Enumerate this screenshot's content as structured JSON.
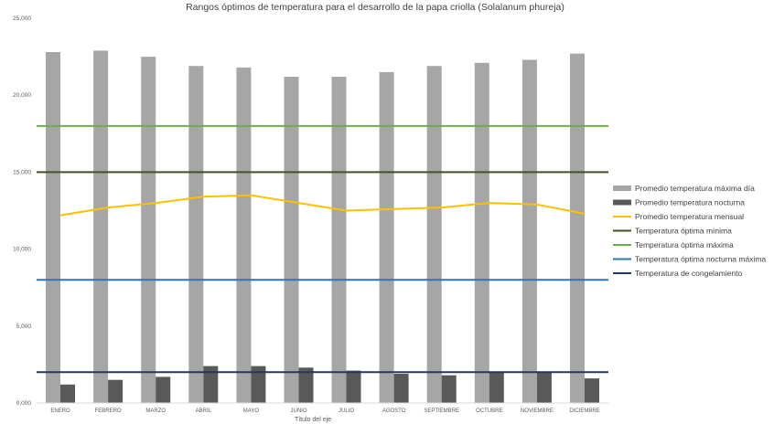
{
  "chart_data": {
    "type": "bar",
    "title": "Rangos óptimos de temperatura para el desarrollo de la papa criolla (Solalanum phureja)",
    "xlabel": "Título del eje",
    "ylabel": "",
    "ylim": [
      0,
      25
    ],
    "yticks": [
      "0,000",
      "5,000",
      "10,000",
      "15,000",
      "20,000",
      "25,000"
    ],
    "categories": [
      "ENERO",
      "FEBRERO",
      "MARZO",
      "ABRIL",
      "MAYO",
      "JUNIO",
      "JULIO",
      "AGOSTO",
      "SEPTIEMBRE",
      "OCTUBRE",
      "NOVIEMBRE",
      "DICIEMBRE"
    ],
    "series": [
      {
        "name": "Promedio temperatura máxima día",
        "type": "bar",
        "color": "#a6a6a6",
        "values": [
          22.8,
          22.9,
          22.5,
          21.9,
          21.8,
          21.2,
          21.2,
          21.5,
          21.9,
          22.1,
          22.3,
          22.7
        ]
      },
      {
        "name": "Promedio temperatura nocturna",
        "type": "bar",
        "color": "#595959",
        "values": [
          1.2,
          1.5,
          1.7,
          2.4,
          2.4,
          2.3,
          2.1,
          1.9,
          1.8,
          2.0,
          2.0,
          1.6
        ]
      },
      {
        "name": "Promedio temperatura mensual",
        "type": "line",
        "color": "#ffc000",
        "values": [
          12.2,
          12.7,
          13.0,
          13.4,
          13.5,
          13.0,
          12.5,
          12.6,
          12.7,
          13.0,
          12.9,
          12.3
        ]
      },
      {
        "name": "Temperatura óptima mínima",
        "type": "line",
        "color": "#375623",
        "values": [
          15,
          15,
          15,
          15,
          15,
          15,
          15,
          15,
          15,
          15,
          15,
          15
        ]
      },
      {
        "name": "Temperatura óptima máxima",
        "type": "line",
        "color": "#70ad47",
        "values": [
          18,
          18,
          18,
          18,
          18,
          18,
          18,
          18,
          18,
          18,
          18,
          18
        ]
      },
      {
        "name": "Temperatura óptima nocturna máxima",
        "type": "line",
        "color": "#2e75b6",
        "values": [
          8,
          8,
          8,
          8,
          8,
          8,
          8,
          8,
          8,
          8,
          8,
          8
        ]
      },
      {
        "name": "Temperatura de congelamiento",
        "type": "line",
        "color": "#1f3864",
        "values": [
          2,
          2,
          2,
          2,
          2,
          2,
          2,
          2,
          2,
          2,
          2,
          2
        ]
      }
    ],
    "grid": false,
    "legend_position": "right"
  }
}
